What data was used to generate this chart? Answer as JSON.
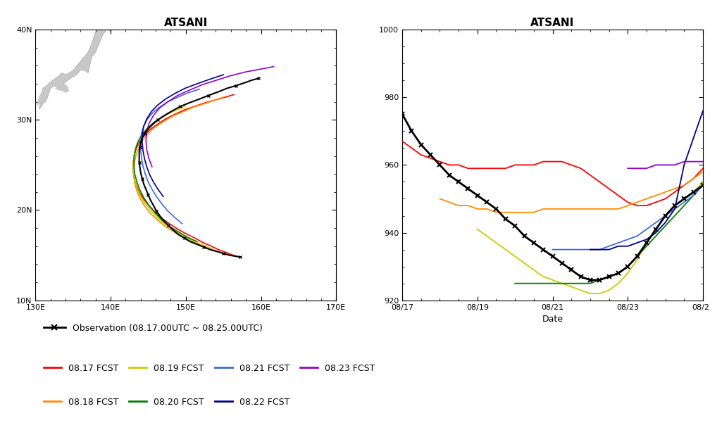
{
  "title_left": "ATSANI",
  "title_right": "ATSANI",
  "map_xlim": [
    130,
    170
  ],
  "map_ylim": [
    10,
    40
  ],
  "map_xticks": [
    130,
    140,
    150,
    160,
    170
  ],
  "map_yticks": [
    10,
    20,
    30,
    40
  ],
  "map_xticklabels": [
    "130E",
    "140E",
    "150E",
    "160E",
    "170E"
  ],
  "map_yticklabels": [
    "10N",
    "20N",
    "30N",
    "40N"
  ],
  "ts_ylim": [
    920,
    1000
  ],
  "ts_yticks": [
    920,
    940,
    960,
    980,
    1000
  ],
  "ts_xlabel": "Date",
  "ts_xticklabels": [
    "08/17",
    "08/19",
    "08/21",
    "08/23",
    "08/25"
  ],
  "legend_obs": "Observation (08.17.00UTC ~ 08.25.00UTC)",
  "fcst_labels": [
    "08.17 FCST",
    "08.18 FCST",
    "08.19 FCST",
    "08.20 FCST",
    "08.21 FCST",
    "08.22 FCST",
    "08.23 FCST"
  ],
  "fcst_colors": [
    "#ff0000",
    "#ff8c00",
    "#cccc00",
    "#008000",
    "#4169e1",
    "#00008b",
    "#9400d3"
  ],
  "background_color": "#ffffff",
  "obs_color": "#000000",
  "japan_color": "#c8c8c8",
  "obs_track_lon": [
    157.2,
    156.5,
    155.8,
    155.0,
    154.2,
    153.3,
    152.4,
    151.5,
    150.6,
    149.8,
    149.0,
    148.3,
    147.7,
    147.1,
    146.6,
    146.1,
    145.7,
    145.3,
    145.0,
    144.7,
    144.4,
    144.2,
    144.0,
    143.9,
    143.8,
    143.8,
    143.8,
    143.9,
    144.0,
    144.2,
    144.5,
    145.0,
    145.6,
    146.3,
    147.2,
    148.2,
    149.3,
    150.5,
    151.8,
    153.0,
    154.3,
    155.5,
    156.7,
    157.8,
    158.8,
    159.7
  ],
  "obs_track_lat": [
    14.8,
    14.9,
    15.0,
    15.2,
    15.4,
    15.6,
    15.9,
    16.2,
    16.5,
    16.9,
    17.3,
    17.8,
    18.3,
    18.8,
    19.3,
    19.9,
    20.5,
    21.1,
    21.7,
    22.3,
    22.9,
    23.5,
    24.1,
    24.7,
    25.3,
    25.9,
    26.5,
    27.0,
    27.5,
    28.0,
    28.5,
    29.0,
    29.5,
    30.0,
    30.5,
    31.0,
    31.5,
    31.9,
    32.3,
    32.7,
    33.1,
    33.5,
    33.8,
    34.1,
    34.4,
    34.6
  ],
  "obs_mslp_t": [
    0,
    6,
    12,
    18,
    24,
    30,
    36,
    42,
    48,
    54,
    60,
    66,
    72,
    78,
    84,
    90,
    96,
    102,
    108,
    114,
    120,
    126,
    132,
    138,
    144,
    150,
    156,
    162,
    168,
    174,
    180,
    186,
    192
  ],
  "obs_mslp": [
    975,
    970,
    966,
    963,
    960,
    957,
    955,
    953,
    951,
    949,
    947,
    944,
    942,
    939,
    937,
    935,
    933,
    931,
    929,
    927,
    926,
    926,
    927,
    928,
    930,
    933,
    937,
    941,
    945,
    948,
    950,
    952,
    954
  ],
  "fcst_0817_track_lon": [
    157.2,
    156.3,
    155.4,
    154.4,
    153.4,
    152.3,
    151.2,
    150.0,
    148.9,
    147.8,
    146.8,
    145.9,
    145.1,
    144.4,
    143.8,
    143.4,
    143.1,
    143.0,
    143.0,
    143.1,
    143.4,
    143.8,
    144.4,
    145.2,
    146.2,
    147.3,
    148.5,
    149.8,
    151.2,
    152.6,
    153.9,
    155.2,
    156.4
  ],
  "fcst_0817_track_lat": [
    14.8,
    15.0,
    15.3,
    15.6,
    16.0,
    16.4,
    16.9,
    17.4,
    17.9,
    18.5,
    19.1,
    19.8,
    20.5,
    21.2,
    22.0,
    22.8,
    23.6,
    24.4,
    25.2,
    26.0,
    26.8,
    27.5,
    28.2,
    28.9,
    29.5,
    30.1,
    30.6,
    31.1,
    31.5,
    31.9,
    32.2,
    32.5,
    32.8
  ],
  "fcst_0817_mslp_t": [
    0,
    6,
    12,
    18,
    24,
    30,
    36,
    42,
    48,
    54,
    60,
    66,
    72,
    78,
    84,
    90,
    96,
    102,
    108,
    114,
    120,
    126,
    132,
    138,
    144,
    150,
    156,
    162,
    168,
    174,
    180,
    186,
    192
  ],
  "fcst_0817_mslp": [
    967,
    965,
    963,
    962,
    961,
    960,
    960,
    959,
    959,
    959,
    959,
    959,
    960,
    960,
    960,
    961,
    961,
    961,
    960,
    959,
    957,
    955,
    953,
    951,
    949,
    948,
    948,
    949,
    950,
    952,
    954,
    956,
    959
  ],
  "fcst_0818_track_lon": [
    155.0,
    154.0,
    153.0,
    151.8,
    150.6,
    149.4,
    148.2,
    147.1,
    146.1,
    145.2,
    144.5,
    143.9,
    143.5,
    143.2,
    143.1,
    143.1,
    143.2,
    143.4,
    143.8,
    144.3,
    145.0,
    145.9,
    147.0,
    148.2,
    149.6,
    151.0,
    152.5,
    153.9,
    155.3
  ],
  "fcst_0818_track_lat": [
    15.2,
    15.5,
    15.8,
    16.2,
    16.6,
    17.1,
    17.7,
    18.3,
    19.0,
    19.7,
    20.5,
    21.3,
    22.1,
    22.9,
    23.7,
    24.6,
    25.4,
    26.2,
    27.0,
    27.8,
    28.5,
    29.2,
    29.8,
    30.4,
    30.9,
    31.4,
    31.8,
    32.2,
    32.6
  ],
  "fcst_0818_mslp_t": [
    24,
    30,
    36,
    42,
    48,
    54,
    60,
    66,
    72,
    78,
    84,
    90,
    96,
    102,
    108,
    114,
    120,
    126,
    132,
    138,
    144,
    150,
    156,
    162,
    168,
    174,
    180,
    186,
    192
  ],
  "fcst_0818_mslp": [
    950,
    949,
    948,
    948,
    947,
    947,
    946,
    946,
    946,
    946,
    946,
    947,
    947,
    947,
    947,
    947,
    947,
    947,
    947,
    947,
    948,
    949,
    950,
    951,
    952,
    953,
    954,
    956,
    958
  ],
  "fcst_0819_track_lon": [
    153.5,
    152.3,
    151.0,
    149.7,
    148.5,
    147.3,
    146.3,
    145.4,
    144.6,
    144.0,
    143.5,
    143.2,
    143.0,
    143.0,
    143.1,
    143.3,
    143.7,
    144.3,
    145.1,
    146.1,
    147.2,
    148.5,
    149.9
  ],
  "fcst_0819_track_lat": [
    15.7,
    16.1,
    16.6,
    17.1,
    17.7,
    18.4,
    19.1,
    19.9,
    20.7,
    21.5,
    22.4,
    23.3,
    24.2,
    25.1,
    26.0,
    26.9,
    27.7,
    28.5,
    29.2,
    29.9,
    30.5,
    31.0,
    31.5
  ],
  "fcst_0819_mslp_t": [
    48,
    54,
    60,
    66,
    72,
    78,
    84,
    90,
    96,
    102,
    108,
    114,
    120,
    126,
    132,
    138,
    144,
    150,
    156,
    162,
    168,
    174,
    180,
    186,
    192
  ],
  "fcst_0819_mslp": [
    941,
    939,
    937,
    935,
    933,
    931,
    929,
    927,
    926,
    925,
    924,
    923,
    922,
    922,
    923,
    925,
    928,
    932,
    937,
    941,
    945,
    948,
    950,
    952,
    955
  ],
  "fcst_0820_track_lon": [
    151.5,
    150.2,
    149.0,
    147.8,
    146.8,
    145.9,
    145.1,
    144.4,
    143.9,
    143.5,
    143.2,
    143.1,
    143.1,
    143.3,
    143.6,
    144.1,
    144.8,
    145.7,
    146.8,
    148.0
  ],
  "fcst_0820_track_lat": [
    16.5,
    17.0,
    17.6,
    18.2,
    18.9,
    19.7,
    20.5,
    21.4,
    22.2,
    23.1,
    24.0,
    24.9,
    25.8,
    26.7,
    27.5,
    28.3,
    29.0,
    29.7,
    30.3,
    30.9
  ],
  "fcst_0820_mslp_t": [
    72,
    78,
    84,
    90,
    96,
    102,
    108,
    114,
    120,
    126,
    132,
    138,
    144,
    150,
    156,
    162,
    168,
    174,
    180,
    186,
    192
  ],
  "fcst_0820_mslp": [
    925,
    925,
    925,
    925,
    925,
    925,
    925,
    925,
    925,
    926,
    927,
    928,
    930,
    933,
    936,
    939,
    942,
    945,
    948,
    951,
    954
  ],
  "fcst_0821_track_lon": [
    149.5,
    148.5,
    147.6,
    146.8,
    146.1,
    145.5,
    145.0,
    144.6,
    144.3,
    144.1,
    144.0,
    144.0,
    144.1,
    144.4,
    144.9,
    145.6,
    146.5,
    147.6,
    148.9,
    150.3,
    151.8
  ],
  "fcst_0821_track_lat": [
    18.5,
    19.2,
    19.9,
    20.7,
    21.5,
    22.3,
    23.1,
    24.0,
    24.9,
    25.8,
    26.7,
    27.6,
    28.5,
    29.3,
    30.1,
    30.8,
    31.4,
    32.0,
    32.5,
    33.0,
    33.4
  ],
  "fcst_0821_mslp_t": [
    96,
    102,
    108,
    114,
    120,
    126,
    132,
    138,
    144,
    150,
    156,
    162,
    168,
    174,
    180,
    186,
    192
  ],
  "fcst_0821_mslp": [
    935,
    935,
    935,
    935,
    935,
    935,
    936,
    937,
    938,
    939,
    941,
    943,
    945,
    947,
    949,
    951,
    954
  ],
  "fcst_0822_track_lon": [
    147.0,
    146.3,
    145.7,
    145.2,
    144.8,
    144.5,
    144.3,
    144.2,
    144.2,
    144.4,
    144.8,
    145.4,
    146.2,
    147.3,
    148.5,
    149.9,
    151.5,
    153.2,
    155.0
  ],
  "fcst_0822_track_lat": [
    21.5,
    22.3,
    23.1,
    23.9,
    24.8,
    25.7,
    26.6,
    27.5,
    28.4,
    29.3,
    30.1,
    30.9,
    31.6,
    32.3,
    32.9,
    33.5,
    34.0,
    34.5,
    35.0
  ],
  "fcst_0822_mslp_t": [
    120,
    126,
    132,
    138,
    144,
    150,
    156,
    162,
    168,
    174,
    180,
    186,
    192
  ],
  "fcst_0822_mslp": [
    935,
    935,
    935,
    936,
    936,
    937,
    938,
    940,
    943,
    947,
    960,
    968,
    976
  ],
  "fcst_0823_track_lon": [
    145.5,
    145.1,
    144.8,
    144.7,
    144.8,
    145.1,
    145.7,
    146.5,
    147.6,
    148.9,
    150.5,
    152.2,
    154.1,
    156.0,
    157.9,
    159.8,
    161.7
  ],
  "fcst_0823_track_lat": [
    24.8,
    25.7,
    26.7,
    27.7,
    28.7,
    29.6,
    30.5,
    31.3,
    32.0,
    32.7,
    33.3,
    33.9,
    34.4,
    34.9,
    35.3,
    35.6,
    35.9
  ],
  "fcst_0823_mslp_t": [
    144,
    150,
    156,
    162,
    168,
    174,
    180,
    186,
    192
  ],
  "fcst_0823_mslp": [
    959,
    959,
    959,
    960,
    960,
    960,
    961,
    961,
    961
  ],
  "japan_lon": [
    130.5,
    130.8,
    131.0,
    131.3,
    131.6,
    132.0,
    132.5,
    133.0,
    133.5,
    134.0,
    134.5,
    135.0,
    135.5,
    136.0,
    136.5,
    137.0,
    137.5,
    138.0,
    138.5,
    139.0,
    139.5,
    140.0,
    140.5,
    141.0,
    141.5,
    141.8,
    141.5,
    141.0,
    140.5,
    140.0,
    139.5,
    139.0,
    138.5,
    138.0,
    137.5,
    137.0,
    136.5,
    136.0,
    135.5,
    135.0,
    134.5,
    134.0,
    133.5,
    133.0,
    132.5,
    132.0,
    131.5,
    131.0,
    130.8,
    130.5
  ],
  "japan_lat": [
    31.2,
    31.5,
    31.8,
    32.0,
    32.5,
    33.5,
    33.8,
    33.5,
    33.8,
    34.2,
    34.5,
    34.8,
    35.0,
    35.5,
    35.5,
    35.2,
    37.0,
    37.5,
    38.5,
    39.5,
    40.0,
    39.8,
    40.5,
    40.8,
    41.0,
    41.5,
    42.0,
    42.5,
    42.0,
    41.5,
    41.0,
    40.5,
    40.0,
    39.8,
    38.5,
    37.5,
    37.0,
    36.5,
    36.0,
    35.5,
    35.2,
    35.0,
    35.2,
    34.8,
    34.5,
    34.2,
    33.8,
    33.5,
    33.0,
    31.2
  ],
  "kyushu_lon": [
    130.2,
    130.5,
    130.8,
    131.0,
    131.3,
    131.5,
    131.8,
    131.5,
    131.2,
    130.9,
    130.6,
    130.3,
    130.2
  ],
  "kyushu_lat": [
    31.5,
    31.8,
    32.0,
    32.3,
    32.5,
    32.8,
    33.0,
    33.3,
    33.5,
    33.2,
    32.8,
    32.2,
    31.5
  ],
  "shikoku_lon": [
    132.5,
    133.0,
    133.5,
    134.0,
    134.5,
    134.2,
    133.8,
    133.3,
    132.8,
    132.5
  ],
  "shikoku_lat": [
    33.5,
    33.3,
    33.2,
    33.0,
    33.2,
    33.8,
    34.0,
    33.8,
    33.5,
    33.5
  ]
}
